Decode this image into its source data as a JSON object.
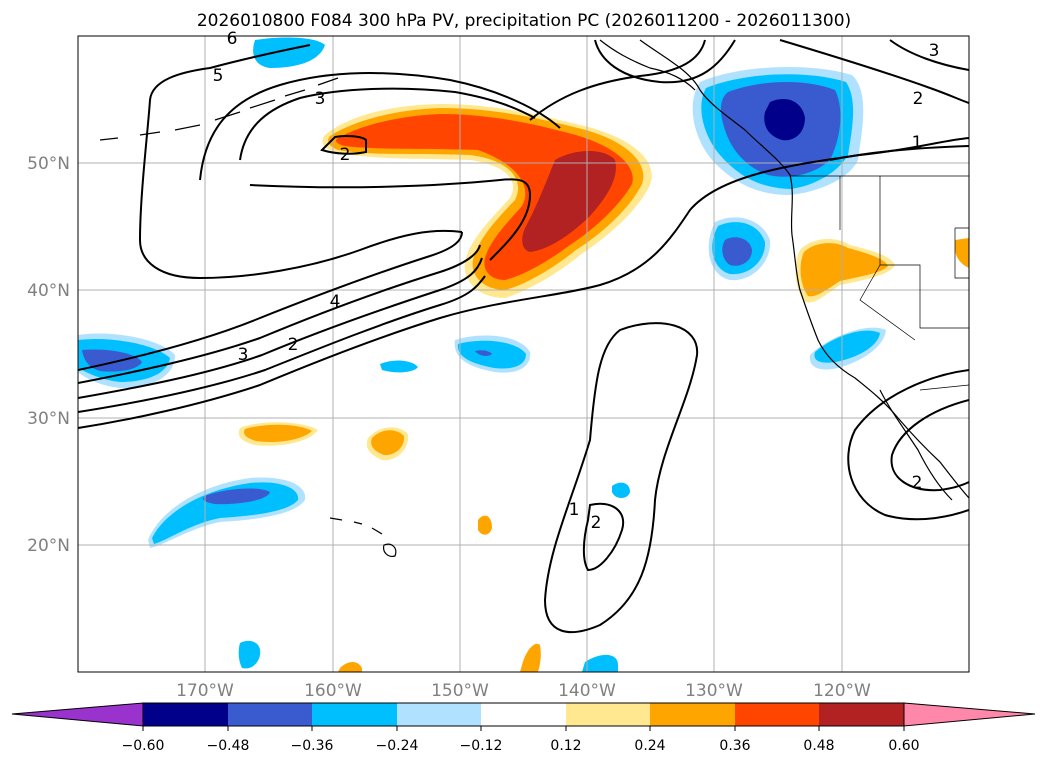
{
  "title": "2026010800 F084 300 hPa PV, precipitation PC (2026011200 - 2026011300)",
  "lat_labels": [
    "50°N",
    "40°N",
    "30°N",
    "20°N"
  ],
  "lon_labels": [
    "170°W",
    "160°W",
    "150°W",
    "140°W",
    "130°W",
    "120°W"
  ],
  "contour_labels": [
    "5",
    "3",
    "2",
    "4",
    "3",
    "2",
    "1",
    "2",
    "1",
    "2",
    "3",
    "2",
    "6"
  ],
  "colorbar": {
    "ticks": [
      "−0.60",
      "−0.48",
      "−0.36",
      "−0.24",
      "−0.12",
      "0.12",
      "0.24",
      "0.36",
      "0.48",
      "0.60"
    ],
    "bins": [
      "#9a32cd",
      "#00008b",
      "#3a5bd0",
      "#00bfff",
      "#b0e2ff",
      "#ffffff",
      "#ffe88f",
      "#ffa500",
      "#ff4500",
      "#b22222",
      "#ff88aa"
    ]
  },
  "colors": {
    "neg_strong": "#00008b",
    "neg_mid": "#3a5bd0",
    "neg_weak": "#00bfff",
    "neg_faint": "#b0e2ff",
    "pos_faint": "#ffe88f",
    "pos_weak": "#ffa500",
    "pos_mid": "#ff4500",
    "pos_strong": "#b22222"
  }
}
